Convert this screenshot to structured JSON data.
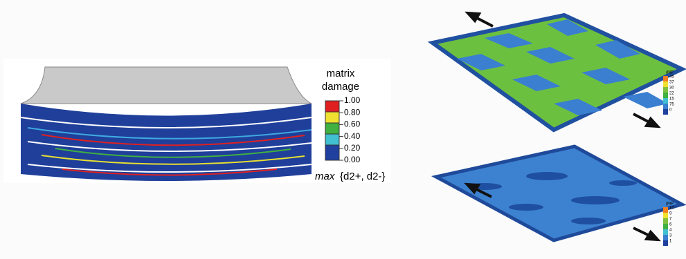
{
  "left_panel": {
    "legend_title_line1": "matrix",
    "legend_title_line2": "damage",
    "legend_labels": [
      "1.00",
      "0.80",
      "0.60",
      "0.40",
      "0.20",
      "0.00"
    ],
    "variable_prefix": "max",
    "variable_body": "{d2+, d2-}"
  },
  "right_top": {
    "legend_labels": [
      "(MP",
      "45",
      "37",
      "30",
      "22",
      "15",
      "75",
      "0"
    ]
  },
  "right_bottom": {
    "legend_labels": [
      "(MP",
      "10",
      "9",
      "7",
      "6",
      "4",
      "3",
      "1"
    ]
  }
}
